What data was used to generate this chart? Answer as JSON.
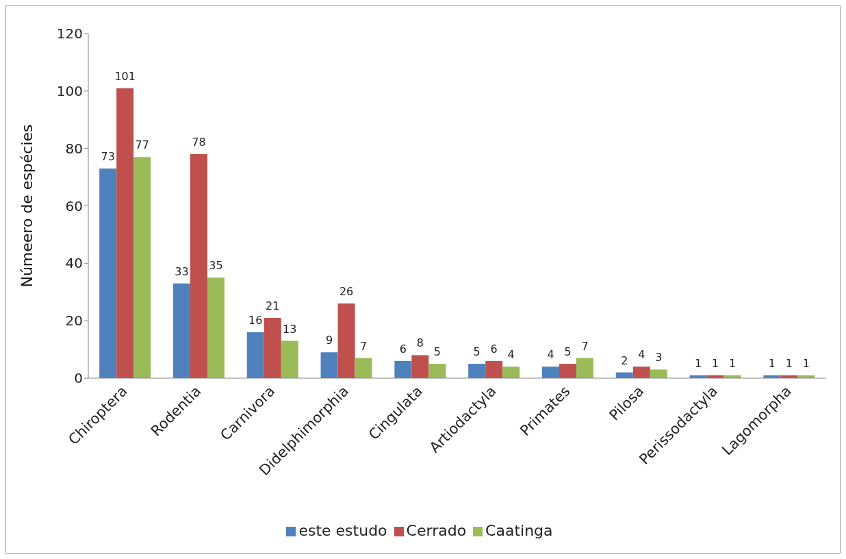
{
  "chart_data": {
    "type": "bar",
    "ylabel": "Númeero de espécies",
    "categories": [
      "Chiroptera",
      "Rodentia",
      "Carnivora",
      "Didelphimorphia",
      "Cingulata",
      "Artiodactyla",
      "Primates",
      "Pilosa",
      "Perissodactyla",
      "Lagomorpha"
    ],
    "series": [
      {
        "name": "este estudo",
        "color": "#4f81bd",
        "values": [
          73,
          33,
          16,
          9,
          6,
          5,
          4,
          2,
          1,
          1
        ]
      },
      {
        "name": "Cerrado",
        "color": "#c0504d",
        "values": [
          101,
          78,
          21,
          26,
          8,
          6,
          5,
          4,
          1,
          1
        ]
      },
      {
        "name": "Caatinga",
        "color": "#9bbb59",
        "values": [
          77,
          35,
          13,
          7,
          5,
          4,
          7,
          3,
          1,
          1
        ]
      }
    ],
    "ylim": [
      0,
      120
    ],
    "yticks": [
      0,
      20,
      40,
      60,
      80,
      100,
      120
    ],
    "grid": false,
    "legend": "bottom",
    "data_labels": true
  }
}
